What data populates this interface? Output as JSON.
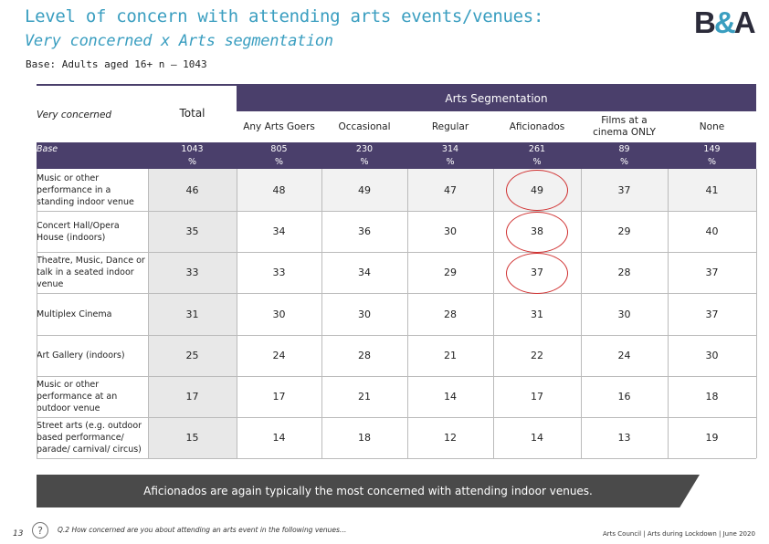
{
  "title": "Level of concern with attending arts events/venues:",
  "subtitle": "Very concerned x Arts segmentation",
  "base_note": "Base: Adults aged 16+ n – 1043",
  "logo": {
    "left": "B",
    "amp": "&",
    "right": "A"
  },
  "table": {
    "corner_label": "Very concerned",
    "total_label": "Total",
    "segment_title": "Arts Segmentation",
    "columns": [
      "Any Arts Goers",
      "Occasional",
      "Regular",
      "Aficionados",
      "Films at a cinema ONLY",
      "None"
    ],
    "base_row": {
      "label": "Base",
      "values": [
        "1043",
        "805",
        "230",
        "314",
        "261",
        "89",
        "149"
      ],
      "unit": "%"
    },
    "rows": [
      {
        "label": "Music or other performance in a standing indoor venue",
        "values": [
          "46",
          "48",
          "49",
          "47",
          "49",
          "37",
          "41"
        ]
      },
      {
        "label": "Concert Hall/Opera House (indoors)",
        "values": [
          "35",
          "34",
          "36",
          "30",
          "38",
          "29",
          "40"
        ]
      },
      {
        "label": "Theatre, Music, Dance or talk in a seated indoor venue",
        "values": [
          "33",
          "33",
          "34",
          "29",
          "37",
          "28",
          "37"
        ]
      },
      {
        "label": "Multiplex Cinema",
        "values": [
          "31",
          "30",
          "30",
          "28",
          "31",
          "30",
          "37"
        ]
      },
      {
        "label": "Art Gallery (indoors)",
        "values": [
          "25",
          "24",
          "28",
          "21",
          "22",
          "24",
          "30"
        ]
      },
      {
        "label": "Music or other performance at an outdoor venue",
        "values": [
          "17",
          "17",
          "21",
          "14",
          "17",
          "16",
          "18"
        ]
      },
      {
        "label": "Street arts (e.g. outdoor based performance/ parade/ carnival/ circus)",
        "values": [
          "15",
          "14",
          "18",
          "12",
          "14",
          "13",
          "19"
        ]
      }
    ]
  },
  "callout": "Aficionados are again typically the most concerned with attending indoor venues.",
  "footer": {
    "page_number": "13",
    "question_icon": "?",
    "question": "Q.2 How concerned are you about attending an arts event in the following venues…",
    "credit": "Arts Council | Arts during Lockdown | June 2020"
  },
  "colors": {
    "header": "#4a3f6b",
    "title": "#3a9ec0",
    "highlight": "#d03030"
  }
}
